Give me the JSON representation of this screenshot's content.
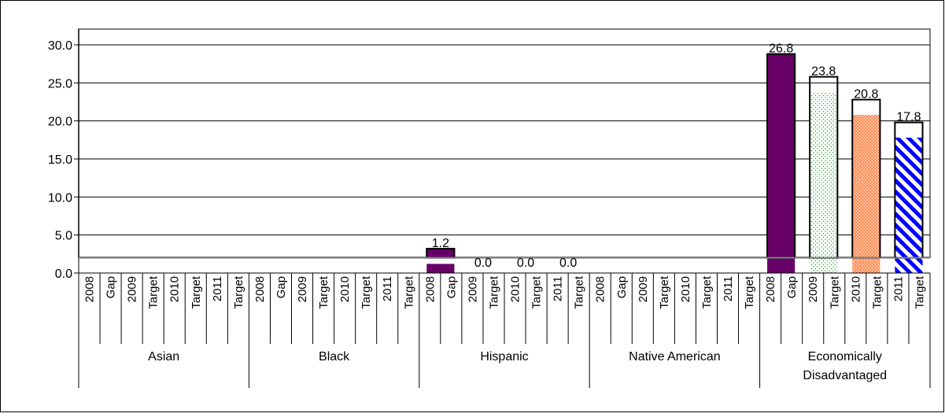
{
  "chart_data": {
    "type": "bar",
    "title": "",
    "xlabel": "",
    "ylabel": "",
    "ylim": [
      0,
      30
    ],
    "yticks": [
      "0.0",
      "5.0",
      "10.0",
      "15.0",
      "20.0",
      "25.0",
      "30.0"
    ],
    "grid": "horizontal",
    "baseline_value": 2,
    "groups": [
      {
        "name": "Asian",
        "name_lines": [
          "Asian"
        ]
      },
      {
        "name": "Black",
        "name_lines": [
          "Black"
        ]
      },
      {
        "name": "Hispanic",
        "name_lines": [
          "Hispanic"
        ]
      },
      {
        "name": "Native American",
        "name_lines": [
          "Native American"
        ]
      },
      {
        "name": "Economically Disadvantaged",
        "name_lines": [
          "Economically",
          "Disadvantaged"
        ]
      }
    ],
    "sub_categories": [
      "2008",
      "Gap",
      "2009",
      "Target",
      "2010",
      "Target",
      "2011",
      "Target"
    ],
    "bar_series": [
      {
        "year": "2008",
        "fill": "solid",
        "color": "#660066"
      },
      {
        "year": "2009",
        "fill": "dots",
        "color": "#33aa33"
      },
      {
        "year": "2010",
        "fill": "crosshatch",
        "color": "#ff9966"
      },
      {
        "year": "2011",
        "fill": "stripes",
        "color": "#0000ff"
      }
    ],
    "values": [
      {
        "group": "Hispanic",
        "year": "2008",
        "value": 1.2,
        "label": "1.2",
        "box_top": 3.2
      },
      {
        "group": "Hispanic",
        "year": "2009",
        "value": 0.0,
        "label": "0.0"
      },
      {
        "group": "Hispanic",
        "year": "2010",
        "value": 0.0,
        "label": "0.0"
      },
      {
        "group": "Hispanic",
        "year": "2011",
        "value": 0.0,
        "label": "0.0"
      },
      {
        "group": "Economically Disadvantaged",
        "year": "2008",
        "value": 26.8,
        "label": "26.8",
        "box_top": 28.8
      },
      {
        "group": "Economically Disadvantaged",
        "year": "2009",
        "value": 23.8,
        "label": "23.8",
        "box_top": 25.8
      },
      {
        "group": "Economically Disadvantaged",
        "year": "2010",
        "value": 20.8,
        "label": "20.8",
        "box_top": 22.8
      },
      {
        "group": "Economically Disadvantaged",
        "year": "2011",
        "value": 17.8,
        "label": "17.8",
        "box_top": 19.8
      }
    ]
  }
}
